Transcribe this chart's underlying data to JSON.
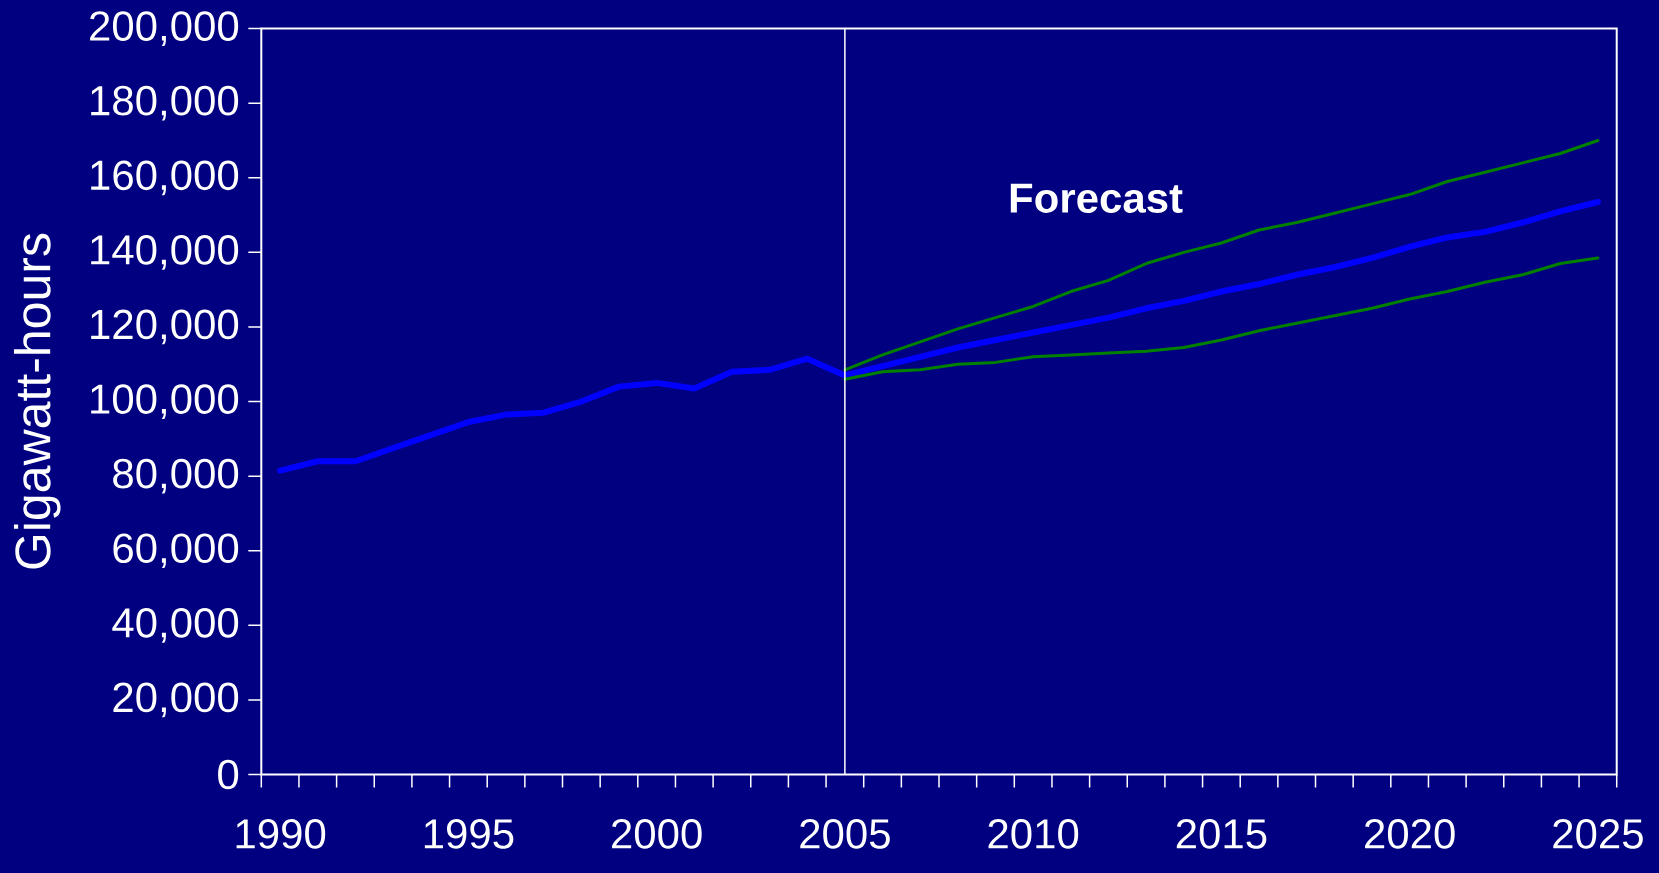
{
  "chart_data": {
    "type": "line",
    "ylabel": "Gigawatt-hours",
    "annotations": [
      "Forecast"
    ],
    "xlim": [
      1989.5,
      2025.5
    ],
    "xticks": [
      {
        "value": 1989.5,
        "label": null
      },
      {
        "value": 1990.5,
        "label": null
      },
      {
        "value": 1991.5,
        "label": null
      },
      {
        "value": 1992.5,
        "label": null
      },
      {
        "value": 1993.5,
        "label": null
      },
      {
        "value": 1994.5,
        "label": null
      },
      {
        "value": 1995.5,
        "label": null
      },
      {
        "value": 1996.5,
        "label": null
      },
      {
        "value": 1997.5,
        "label": null
      },
      {
        "value": 1998.5,
        "label": null
      },
      {
        "value": 1999.5,
        "label": null
      },
      {
        "value": 2000.5,
        "label": null
      },
      {
        "value": 2001.5,
        "label": null
      },
      {
        "value": 2002.5,
        "label": null
      },
      {
        "value": 2003.5,
        "label": null
      },
      {
        "value": 2004.5,
        "label": null
      },
      {
        "value": 2005.5,
        "label": null
      },
      {
        "value": 2006.5,
        "label": null
      },
      {
        "value": 2007.5,
        "label": null
      },
      {
        "value": 2008.5,
        "label": null
      },
      {
        "value": 2009.5,
        "label": null
      },
      {
        "value": 2010.5,
        "label": null
      },
      {
        "value": 2011.5,
        "label": null
      },
      {
        "value": 2012.5,
        "label": null
      },
      {
        "value": 2013.5,
        "label": null
      },
      {
        "value": 2014.5,
        "label": null
      },
      {
        "value": 2015.5,
        "label": null
      },
      {
        "value": 2016.5,
        "label": null
      },
      {
        "value": 2017.5,
        "label": null
      },
      {
        "value": 2018.5,
        "label": null
      },
      {
        "value": 2019.5,
        "label": null
      },
      {
        "value": 2020.5,
        "label": null
      },
      {
        "value": 2021.5,
        "label": null
      },
      {
        "value": 2022.5,
        "label": null
      },
      {
        "value": 2023.5,
        "label": null
      },
      {
        "value": 2024.5,
        "label": null
      },
      {
        "value": 2025.5,
        "label": null
      },
      1990,
      1995,
      2000,
      2005,
      2010,
      2015,
      2020,
      2025
    ],
    "ylim": [
      0,
      200000
    ],
    "yticks": [
      0,
      {
        "value": 20000,
        "label": "20,000"
      },
      {
        "value": 40000,
        "label": "40,000"
      },
      {
        "value": 60000,
        "label": "60,000"
      },
      {
        "value": 80000,
        "label": "80,000"
      },
      {
        "value": 100000,
        "label": "100,000"
      },
      {
        "value": 120000,
        "label": "120,000"
      },
      {
        "value": 140000,
        "label": "140,000"
      },
      {
        "value": 160000,
        "label": "160,000"
      },
      {
        "value": 180000,
        "label": "180,000"
      },
      {
        "value": 200000,
        "label": "200,000"
      }
    ],
    "x": [
      1990,
      1991,
      1992,
      1993,
      1994,
      1995,
      1996,
      1997,
      1998,
      1999,
      2000,
      2001,
      2002,
      2003,
      2004,
      2005,
      2006,
      2007,
      2008,
      2009,
      2010,
      2011,
      2012,
      2013,
      2014,
      2015,
      2016,
      2017,
      2018,
      2019,
      2020,
      2021,
      2022,
      2023,
      2024,
      2025
    ],
    "series": [
      {
        "color": "#0000ff",
        "values": [
          81500,
          84000,
          84000,
          87500,
          91000,
          94500,
          96500,
          97000,
          100000,
          104000,
          105000,
          103500,
          108000,
          108500,
          111500,
          107000,
          109500,
          112000,
          114500,
          116500,
          118500,
          120500,
          122500,
          125000,
          127000,
          129500,
          131500,
          134000,
          136000,
          138500,
          141500,
          144000,
          145500,
          148000,
          151000,
          153500
        ]
      },
      {
        "color": "#008000",
        "x": [
          2005,
          2006,
          2007,
          2008,
          2009,
          2010,
          2011,
          2012,
          2013,
          2014,
          2015,
          2016,
          2017,
          2018,
          2019,
          2020,
          2021,
          2022,
          2023,
          2024,
          2025
        ],
        "values": [
          108500,
          112500,
          116000,
          119500,
          122500,
          125500,
          129500,
          132500,
          137000,
          140000,
          142500,
          146000,
          148000,
          150500,
          153000,
          155500,
          159000,
          161500,
          164000,
          166500,
          170000
        ]
      },
      {
        "color": "#008000",
        "x": [
          2005,
          2006,
          2007,
          2008,
          2009,
          2010,
          2011,
          2012,
          2013,
          2014,
          2015,
          2016,
          2017,
          2018,
          2019,
          2020,
          2021,
          2022,
          2023,
          2024,
          2025
        ],
        "values": [
          106000,
          108000,
          108500,
          110000,
          110500,
          112000,
          112500,
          113000,
          113500,
          114500,
          116500,
          119000,
          121000,
          123000,
          125000,
          127500,
          129500,
          132000,
          134000,
          137000,
          138500
        ]
      }
    ],
    "ref_lines": [
      {
        "axis": "x",
        "value": 2005,
        "color": "#ffffff"
      }
    ]
  }
}
